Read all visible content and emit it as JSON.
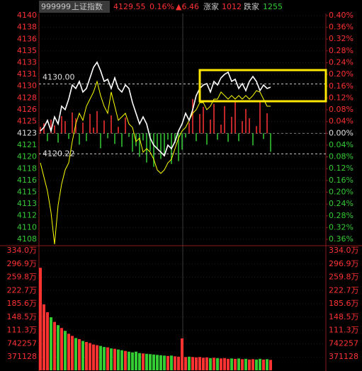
{
  "header": {
    "code": "999999",
    "name": "上证指数",
    "price": 4129.55,
    "change_pct": "0.16%",
    "change": "▲6.46",
    "up_label": "涨家",
    "up_count": 1012,
    "down_label": "跌家",
    "down_count": 1255
  },
  "chart_data": {
    "type": "line",
    "ylim": [
      4107.46,
      4140.37
    ],
    "yticks": [
      {
        "value": 4139.58,
        "label": "4140"
      },
      {
        "value": 4137.93,
        "label": "4138"
      },
      {
        "value": 4136.28,
        "label": "4136"
      },
      {
        "value": 4134.63,
        "label": "4135"
      },
      {
        "value": 4132.99,
        "label": "4133"
      },
      {
        "value": 4131.34,
        "label": "4131"
      },
      {
        "value": 4129.69,
        "label": "4130"
      },
      {
        "value": 4128.04,
        "label": "4128"
      },
      {
        "value": 4126.39,
        "label": "4126"
      },
      {
        "value": 4124.74,
        "label": "4125"
      },
      {
        "value": 4123.09,
        "label": "4123"
      },
      {
        "value": 4121.44,
        "label": "4121"
      },
      {
        "value": 4119.79,
        "label": "4120"
      },
      {
        "value": 4118.14,
        "label": "4118"
      },
      {
        "value": 4116.49,
        "label": "4116"
      },
      {
        "value": 4114.84,
        "label": "4115"
      },
      {
        "value": 4113.2,
        "label": "4113"
      },
      {
        "value": 4111.55,
        "label": "4112"
      },
      {
        "value": 4109.9,
        "label": "4110"
      },
      {
        "value": 4108.25,
        "label": "4108"
      }
    ],
    "y2lim": [
      -0.379,
      0.419
    ],
    "y2ticks": [
      {
        "value": 0.4,
        "label": "0.40%"
      },
      {
        "value": 0.36,
        "label": "0.36%"
      },
      {
        "value": 0.32,
        "label": "0.32%"
      },
      {
        "value": 0.28,
        "label": "0.28%"
      },
      {
        "value": 0.24,
        "label": "0.24%"
      },
      {
        "value": 0.2,
        "label": "0.20%"
      },
      {
        "value": 0.16,
        "label": "0.16%"
      },
      {
        "value": 0.12,
        "label": "0.12%"
      },
      {
        "value": 0.08,
        "label": "0.08%"
      },
      {
        "value": 0.04,
        "label": "0.04%"
      },
      {
        "value": 0,
        "label": "0.00%"
      },
      {
        "value": -0.04,
        "label": "0.04%"
      },
      {
        "value": -0.08,
        "label": "0.08%"
      },
      {
        "value": -0.12,
        "label": "0.12%"
      },
      {
        "value": -0.16,
        "label": "0.16%"
      },
      {
        "value": -0.2,
        "label": "0.20%"
      },
      {
        "value": -0.24,
        "label": "0.24%"
      },
      {
        "value": -0.28,
        "label": "0.28%"
      },
      {
        "value": -0.32,
        "label": "0.32%"
      },
      {
        "value": -0.36,
        "label": "0.36%"
      }
    ],
    "annotations": [
      {
        "value": 4130.0,
        "label": "4130.00"
      },
      {
        "value": 4120.22,
        "label": "4120.22"
      }
    ],
    "series": [
      {
        "color": "#ffffff",
        "values": [
          4123.42,
          4123.92,
          4124.91,
          4123.42,
          4125.4,
          4124.41,
          4126.89,
          4126.4,
          4127.88,
          4129.86,
          4129.37,
          4130.36,
          4128.87,
          4129.37,
          4130.86,
          4132.34,
          4133.04,
          4131.85,
          4130.36,
          4130.66,
          4129.37,
          4130.86,
          4129.37,
          4128.87,
          4129.86,
          4129.37,
          4127.39,
          4125.9,
          4124.41,
          4125.4,
          4124.41,
          4122.43,
          4121.44,
          4120.94,
          4120.45,
          4119.95,
          4121.44,
          4120.94,
          4121.94,
          4123.42,
          4124.41,
          4125.9,
          4124.91,
          4126.4,
          4128.38,
          4129.37,
          4129.86,
          4130.06,
          4128.87,
          4130.36,
          4129.86,
          4130.86,
          4131.35,
          4131.65,
          4130.36,
          4130.66,
          4129.37,
          4130.06,
          4129.07,
          4130.36,
          4131.05,
          4130.36,
          4129.07,
          4129.86,
          4129.37,
          4129.55
        ]
      },
      {
        "color": "#ffff00",
        "values": [
          4118.96,
          4116.98,
          4115.0,
          4112.03,
          4107.57,
          4113.02,
          4115.99,
          4117.97,
          4118.96,
          4121.94,
          4124.41,
          4125.9,
          4124.91,
          4126.89,
          4127.88,
          4128.87,
          4130.36,
          4128.38,
          4126.89,
          4125.9,
          4128.87,
          4126.89,
          4124.91,
          4125.4,
          4125.9,
          4124.41,
          4123.92,
          4121.94,
          4122.43,
          4120.45,
          4120.94,
          4120.45,
          4119.46,
          4117.97,
          4117.48,
          4117.97,
          4118.96,
          4119.46,
          4120.94,
          4122.43,
          4123.42,
          4123.92,
          4124.91,
          4125.9,
          4126.4,
          4127.39,
          4127.39,
          4126.4,
          4126.89,
          4127.88,
          4127.88,
          4128.87,
          4128.38,
          4127.88,
          4128.38,
          4127.88,
          4128.38,
          4127.88,
          4128.38,
          4127.88,
          4128.38,
          4129.07,
          4128.87,
          4127.88,
          4126.89,
          4126.89
        ]
      }
    ],
    "breadth": {
      "up_color": "#ff3232",
      "down_color": "#33cc33",
      "values": [
        4124.0,
        4124.5,
        4122.0,
        4125.0,
        4124.2,
        4121.8,
        4125.5,
        4124.8,
        4122.3,
        4126.0,
        4125.2,
        4121.5,
        4124.6,
        4122.0,
        4125.8,
        4123.9,
        4126.2,
        4121.0,
        4124.9,
        4122.4,
        4125.6,
        4121.6,
        4124.0,
        4121.2,
        4125.3,
        4122.6,
        4120.5,
        4121.3,
        4119.8,
        4122.1,
        4119.0,
        4120.6,
        4118.4,
        4121.0,
        4119.5,
        4120.0,
        4122.2,
        4118.8,
        4121.7,
        4119.2,
        4120.8,
        4122.5,
        4124.6,
        4127.9,
        4122.0,
        4125.8,
        4126.8,
        4121.5,
        4125.0,
        4127.2,
        4122.2,
        4124.3,
        4126.9,
        4121.9,
        4125.4,
        4127.5,
        4122.0,
        4124.8,
        4126.5,
        4125.2,
        4121.4,
        4124.1,
        4127.6,
        4122.3,
        4125.9,
        4120.5
      ]
    },
    "volume": {
      "type": "bar",
      "up_color": "#ff3232",
      "down_color": "#33cc33",
      "ylim": [
        0,
        3340152
      ],
      "yticks": [
        {
          "value": 3340152,
          "label": "334.0万"
        },
        {
          "value": 2969024,
          "label": "296.9万"
        },
        {
          "value": 2597896,
          "label": "259.8万"
        },
        {
          "value": 2226768,
          "label": "222.7万"
        },
        {
          "value": 1855640,
          "label": "185.6万"
        },
        {
          "value": 1484512,
          "label": "148.5万"
        },
        {
          "value": 1113384,
          "label": "111.3万"
        },
        742257,
        371128
      ],
      "values": [
        2860000,
        1840000,
        1620000,
        1480000,
        1350000,
        1260000,
        1180000,
        1100000,
        1020000,
        960000,
        900000,
        870000,
        820000,
        790000,
        760000,
        720000,
        700000,
        680000,
        650000,
        640000,
        610000,
        600000,
        580000,
        560000,
        540000,
        520000,
        500000,
        520000,
        480000,
        470000,
        460000,
        450000,
        440000,
        430000,
        420000,
        410000,
        400000,
        410000,
        390000,
        380000,
        890000,
        370000,
        380000,
        370000,
        360000,
        370000,
        350000,
        360000,
        340000,
        350000,
        340000,
        330000,
        340000,
        320000,
        330000,
        320000,
        330000,
        310000,
        320000,
        300000,
        310000,
        300000,
        320000,
        300000,
        310000,
        290000
      ]
    }
  }
}
